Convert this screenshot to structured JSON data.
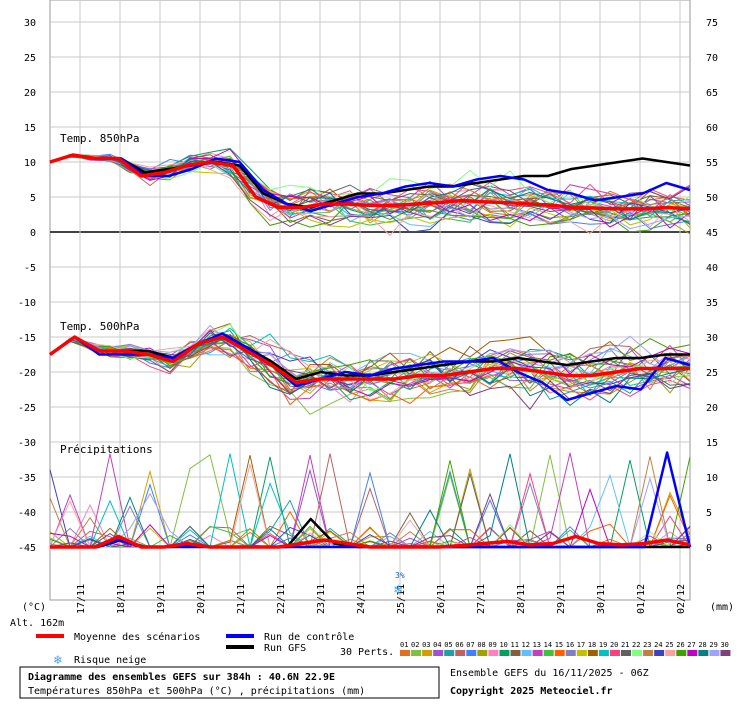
{
  "chart_data": {
    "type": "line",
    "left_ticks": [
      30,
      25,
      20,
      15,
      10,
      5,
      0,
      -5,
      -10,
      -15,
      -20,
      -25,
      -30,
      -35,
      -40,
      -45
    ],
    "right_ticks": [
      75,
      70,
      65,
      60,
      55,
      50,
      45,
      40,
      35,
      30,
      25,
      20,
      15,
      10,
      5,
      0
    ],
    "dates": [
      "17/11",
      "18/11",
      "19/11",
      "20/11",
      "21/11",
      "22/11",
      "23/11",
      "24/11",
      "25/11",
      "26/11",
      "27/11",
      "28/11",
      "29/11",
      "30/11",
      "01/12",
      "02/12"
    ],
    "panel_labels": [
      "Temp. 850hPa",
      "Temp. 500hPa",
      "Précipitations"
    ],
    "left_unit": "(°C)",
    "right_unit": "(mm)",
    "altitude_label": "Alt. 162m",
    "snow_marker": {
      "date_index": 8.05,
      "percent": "3%"
    },
    "x_hours": [
      0,
      12,
      24,
      36,
      48,
      60,
      72,
      84,
      96,
      108,
      120,
      132,
      144,
      156,
      168,
      180,
      192,
      204,
      216,
      228,
      240,
      252,
      264,
      276,
      288,
      300,
      312,
      324,
      336,
      348,
      360,
      372,
      384
    ],
    "series": [
      {
        "name": "Moyenne des scénarios",
        "color": "#ff0000",
        "temp850": [
          10,
          11,
          10.5,
          10.5,
          8,
          8.5,
          9.5,
          10,
          9.5,
          5,
          3.5,
          3.5,
          4,
          4,
          3.8,
          3.8,
          4,
          4.2,
          4.5,
          4.3,
          4.2,
          4,
          3.8,
          3.5,
          3.4,
          3.3,
          3.3,
          3.5,
          3.3
        ],
        "temp500": [
          -17.5,
          -15,
          -17,
          -17,
          -17.5,
          -18.5,
          -16,
          -15,
          -17,
          -19,
          -21.5,
          -21,
          -21,
          -21,
          -21,
          -20.5,
          -20.5,
          -20,
          -19.5,
          -19.5,
          -20,
          -20.5,
          -20.5,
          -20,
          -19.5,
          -19.5,
          -19.5
        ],
        "precip": [
          0,
          0,
          0,
          1.5,
          0,
          0,
          0.5,
          0,
          0,
          0,
          0,
          0.5,
          1,
          0.5,
          0,
          0,
          0,
          0,
          0.2,
          0.5,
          0.8,
          0.3,
          0.5,
          1.5,
          0.5,
          0.3,
          0.5,
          1,
          0.3
        ]
      },
      {
        "name": "Run de contrôle",
        "color": "#0000ff",
        "temp850": [
          10,
          11,
          10.5,
          10.5,
          8,
          8,
          9,
          10.5,
          10,
          6,
          4,
          3,
          4,
          5,
          5.5,
          6.5,
          7,
          6.5,
          7.5,
          8,
          7.5,
          6,
          5.5,
          4.5,
          5,
          5.5,
          7,
          6
        ],
        "temp500": [
          -17.5,
          -15,
          -17.5,
          -17.5,
          -17.5,
          -18,
          -16,
          -14.5,
          -16.5,
          -19,
          -22,
          -21,
          -20,
          -20.5,
          -19.5,
          -19,
          -18.5,
          -18.5,
          -18,
          -20,
          -21.5,
          -24,
          -23,
          -22,
          -22.5,
          -18,
          -19
        ],
        "precip": [
          0,
          0,
          0,
          1,
          0,
          0,
          0,
          0,
          0,
          0,
          0,
          0,
          0,
          0,
          0,
          0,
          0,
          0,
          0,
          0,
          0,
          0,
          0,
          0,
          0,
          0,
          0,
          13.5,
          0
        ]
      },
      {
        "name": "Run GFS",
        "color": "#000000",
        "temp850": [
          10,
          11,
          10.5,
          10.5,
          8.5,
          9,
          9.5,
          10,
          9.5,
          5.5,
          4,
          3.5,
          4.5,
          5.5,
          5.5,
          6,
          6.5,
          6.5,
          7,
          7.5,
          8,
          8,
          9,
          9.5,
          10,
          10.5,
          10,
          9.5
        ],
        "temp500": [
          -17.5,
          -15,
          -17,
          -17,
          -17,
          -18,
          -16,
          -15,
          -16.5,
          -18.5,
          -21,
          -20,
          -20.5,
          -20.5,
          -20,
          -19.5,
          -19,
          -18.5,
          -18.5,
          -18,
          -18.5,
          -19,
          -18.5,
          -18,
          -18,
          -17.5,
          -17.5
        ],
        "precip": [
          0,
          0,
          0,
          1,
          0,
          0,
          0.2,
          0,
          0,
          0,
          0,
          4,
          0.5,
          0,
          0,
          0,
          0,
          0,
          0,
          0,
          0,
          0,
          0,
          0,
          0,
          0,
          0,
          0
        ]
      }
    ],
    "perturbation_count": 30
  },
  "legend": {
    "mean_label": "Moyenne des scénarios",
    "control_label": "Run de contrôle",
    "gfs_label": "Run GFS",
    "snow_label": "Risque neige",
    "perts_label": "30 Perts.",
    "pert_numbers": [
      "01",
      "02",
      "03",
      "04",
      "05",
      "06",
      "07",
      "08",
      "09",
      "10",
      "11",
      "12",
      "13",
      "14",
      "15",
      "16",
      "17",
      "18",
      "19",
      "20",
      "21",
      "22",
      "23",
      "24",
      "25",
      "26",
      "27",
      "28",
      "29",
      "30"
    ],
    "pert_colors": [
      "#e07020",
      "#80c040",
      "#d0a000",
      "#a050d0",
      "#20a0a0",
      "#c06060",
      "#4080ff",
      "#a0a000",
      "#ff80c0",
      "#00a060",
      "#806040",
      "#60c0ff",
      "#c040c0",
      "#40c040",
      "#ff6000",
      "#8080c0",
      "#c0c000",
      "#a06000",
      "#00c0c0",
      "#ff4080",
      "#606060",
      "#80ff80",
      "#c08040",
      "#4040c0",
      "#ffa0a0",
      "#40a000",
      "#c000c0",
      "#008080",
      "#a0a0ff",
      "#804080"
    ]
  },
  "footer": {
    "title_line": "Diagramme des ensembles GEFS sur 384h : 40.6N 22.9E",
    "subtitle_line": "Températures 850hPa et 500hPa (°C) , précipitations (mm)",
    "ensemble_line": "Ensemble GEFS du 16/11/2025 - 06Z",
    "copyright_line": "Copyright 2025 Meteociel.fr"
  }
}
